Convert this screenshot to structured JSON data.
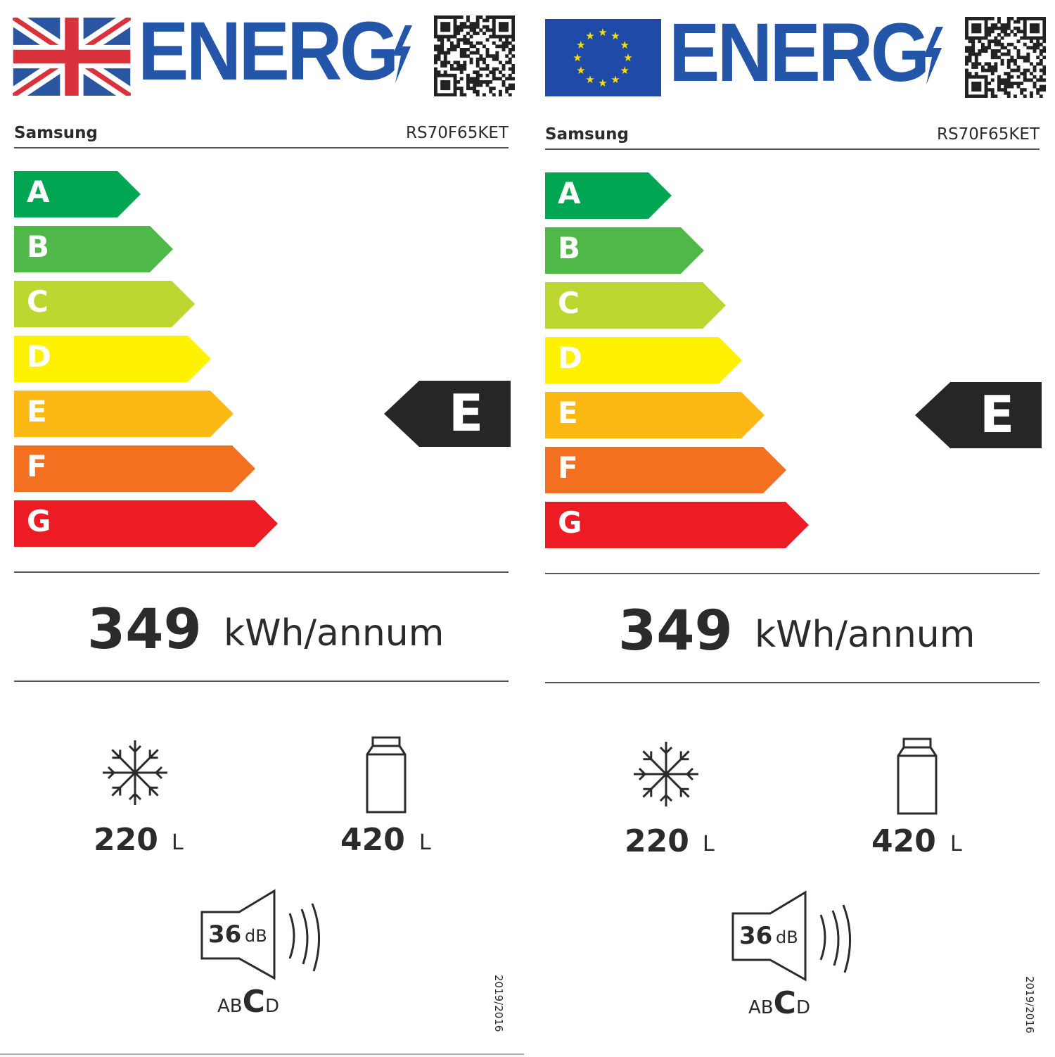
{
  "labels": [
    {
      "flag": "uk-flag",
      "energy_word": "ENERG",
      "brand": "Samsung",
      "model": "RS70F65KET",
      "classes": [
        {
          "letter": "A",
          "color": "#00a651"
        },
        {
          "letter": "B",
          "color": "#50b848"
        },
        {
          "letter": "C",
          "color": "#bed630"
        },
        {
          "letter": "D",
          "color": "#fff200"
        },
        {
          "letter": "E",
          "color": "#fdb913"
        },
        {
          "letter": "F",
          "color": "#f37021"
        },
        {
          "letter": "G",
          "color": "#ed1c24"
        }
      ],
      "rating": "E",
      "consumption_value": "349",
      "consumption_unit": "kWh/annum",
      "freezer_volume": "220",
      "freezer_unit": "L",
      "fridge_volume": "420",
      "fridge_unit": "L",
      "noise_value": "36",
      "noise_unit": "dB",
      "noise_classes": [
        "A",
        "B",
        "C",
        "D"
      ],
      "noise_class": "C",
      "regulation": "2019/2016"
    },
    {
      "flag": "eu-flag",
      "energy_word": "ENERG",
      "brand": "Samsung",
      "model": "RS70F65KET",
      "classes": [
        {
          "letter": "A",
          "color": "#00a651"
        },
        {
          "letter": "B",
          "color": "#50b848"
        },
        {
          "letter": "C",
          "color": "#bed630"
        },
        {
          "letter": "D",
          "color": "#fff200"
        },
        {
          "letter": "E",
          "color": "#fdb913"
        },
        {
          "letter": "F",
          "color": "#f37021"
        },
        {
          "letter": "G",
          "color": "#ed1c24"
        }
      ],
      "rating": "E",
      "consumption_value": "349",
      "consumption_unit": "kWh/annum",
      "freezer_volume": "220",
      "freezer_unit": "L",
      "fridge_volume": "420",
      "fridge_unit": "L",
      "noise_value": "36",
      "noise_unit": "dB",
      "noise_classes": [
        "A",
        "B",
        "C",
        "D"
      ],
      "noise_class": "C",
      "regulation": "2019/2016"
    }
  ],
  "colors": {
    "brand_blue": "#2356a8",
    "uk_red": "#d9323d",
    "eu_blue": "#1f4aa8",
    "eu_star": "#ffdd00",
    "rating_arrow": "#262626"
  }
}
